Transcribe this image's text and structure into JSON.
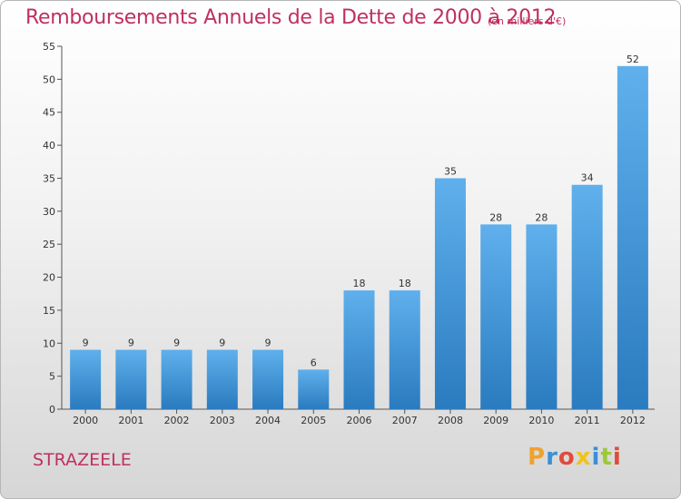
{
  "header": {
    "title": "Remboursements Annuels de la Dette de 2000 à 2012",
    "subtitle": "(en milliers d'€)"
  },
  "footer": {
    "town": "STRAZEELE",
    "brand_letters": [
      "P",
      "r",
      "o",
      "x",
      "i",
      "t",
      "i"
    ],
    "brand_colors": [
      "#f0a22b",
      "#3b8fd6",
      "#e24a3b",
      "#f0c419",
      "#3b8fd6",
      "#9bc93a",
      "#e24a3b"
    ]
  },
  "colors": {
    "bar_top": "#5fb0ec",
    "bar_bottom": "#2a7bbf",
    "title": "#c0305e"
  },
  "chart_data": {
    "type": "bar",
    "categories": [
      "2000",
      "2001",
      "2002",
      "2003",
      "2004",
      "2005",
      "2006",
      "2007",
      "2008",
      "2009",
      "2010",
      "2011",
      "2012"
    ],
    "values": [
      9,
      9,
      9,
      9,
      9,
      6,
      18,
      18,
      35,
      28,
      28,
      34,
      52
    ],
    "title": "Remboursements Annuels de la Dette de 2000 à 2012",
    "subtitle": "(en milliers d'€)",
    "ylim": [
      0,
      55
    ],
    "yticks": [
      0,
      5,
      10,
      15,
      20,
      25,
      30,
      35,
      40,
      45,
      50,
      55
    ],
    "grid": false,
    "legend": "none"
  }
}
